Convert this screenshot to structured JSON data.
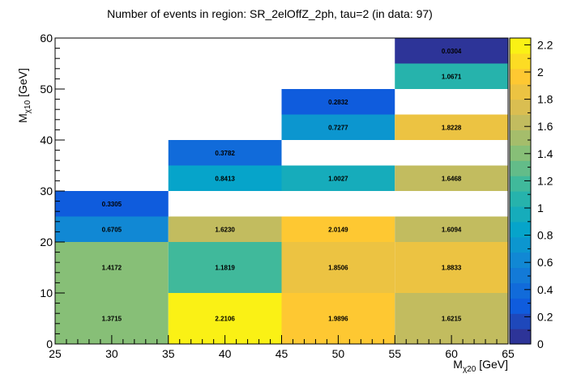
{
  "chart_data": {
    "type": "heatmap",
    "title": "Number of events in region: SR_2elOffZ_2ph, tau=2 (in data: 97)",
    "xlabel": {
      "main": "M",
      "sub": "χ20",
      "unit": " [GeV]"
    },
    "ylabel": {
      "main": "M",
      "sub": "χ10",
      "unit": " [GeV]"
    },
    "xlim": [
      25,
      65
    ],
    "ylim": [
      0,
      60
    ],
    "x_ticks": [
      25,
      30,
      35,
      40,
      45,
      50,
      55,
      60,
      65
    ],
    "y_ticks": [
      0,
      10,
      20,
      30,
      40,
      50,
      60
    ],
    "zlim": [
      0,
      2.25
    ],
    "z_ticks": [
      0,
      0.2,
      0.4,
      0.6,
      0.8,
      1,
      1.2,
      1.4,
      1.6,
      1.8,
      2,
      2.2
    ],
    "colormap": [
      "#352a87",
      "#0f5cdd",
      "#1481d6",
      "#06a4ca",
      "#2eb7a4",
      "#87bf77",
      "#d1bb59",
      "#fec832",
      "#f9fb0e"
    ],
    "cells": [
      {
        "x0": 25,
        "x1": 35,
        "y0": 0,
        "y1": 10,
        "value": 1.3715,
        "label": "1.3715"
      },
      {
        "x0": 25,
        "x1": 35,
        "y0": 10,
        "y1": 20,
        "value": 1.4172,
        "label": "1.4172"
      },
      {
        "x0": 25,
        "x1": 35,
        "y0": 20,
        "y1": 25,
        "value": 0.6705,
        "label": "0.6705"
      },
      {
        "x0": 25,
        "x1": 35,
        "y0": 25,
        "y1": 30,
        "value": 0.3305,
        "label": "0.3305"
      },
      {
        "x0": 35,
        "x1": 45,
        "y0": 0,
        "y1": 10,
        "value": 2.2106,
        "label": "2.2106"
      },
      {
        "x0": 35,
        "x1": 45,
        "y0": 10,
        "y1": 20,
        "value": 1.1819,
        "label": "1.1819"
      },
      {
        "x0": 35,
        "x1": 45,
        "y0": 20,
        "y1": 25,
        "value": 1.623,
        "label": "1.6230"
      },
      {
        "x0": 35,
        "x1": 45,
        "y0": 30,
        "y1": 35,
        "value": 0.8413,
        "label": "0.8413"
      },
      {
        "x0": 35,
        "x1": 45,
        "y0": 35,
        "y1": 40,
        "value": 0.3782,
        "label": "0.3782"
      },
      {
        "x0": 45,
        "x1": 55,
        "y0": 0,
        "y1": 10,
        "value": 1.9896,
        "label": "1.9896"
      },
      {
        "x0": 45,
        "x1": 55,
        "y0": 10,
        "y1": 20,
        "value": 1.8506,
        "label": "1.8506"
      },
      {
        "x0": 45,
        "x1": 55,
        "y0": 20,
        "y1": 25,
        "value": 2.0149,
        "label": "2.0149"
      },
      {
        "x0": 45,
        "x1": 55,
        "y0": 30,
        "y1": 35,
        "value": 1.0027,
        "label": "1.0027"
      },
      {
        "x0": 45,
        "x1": 55,
        "y0": 40,
        "y1": 45,
        "value": 0.7277,
        "label": "0.7277"
      },
      {
        "x0": 45,
        "x1": 55,
        "y0": 45,
        "y1": 50,
        "value": 0.2832,
        "label": "0.2832"
      },
      {
        "x0": 55,
        "x1": 65,
        "y0": 0,
        "y1": 10,
        "value": 1.6215,
        "label": "1.6215"
      },
      {
        "x0": 55,
        "x1": 65,
        "y0": 10,
        "y1": 20,
        "value": 1.8833,
        "label": "1.8833"
      },
      {
        "x0": 55,
        "x1": 65,
        "y0": 20,
        "y1": 25,
        "value": 1.6094,
        "label": "1.6094"
      },
      {
        "x0": 55,
        "x1": 65,
        "y0": 30,
        "y1": 35,
        "value": 1.6468,
        "label": "1.6468"
      },
      {
        "x0": 55,
        "x1": 65,
        "y0": 40,
        "y1": 45,
        "value": 1.8228,
        "label": "1.8228"
      },
      {
        "x0": 55,
        "x1": 65,
        "y0": 50,
        "y1": 55,
        "value": 1.0671,
        "label": "1.0671"
      },
      {
        "x0": 55,
        "x1": 65,
        "y0": 55,
        "y1": 60,
        "value": 0.0304,
        "label": "0.0304"
      }
    ]
  }
}
